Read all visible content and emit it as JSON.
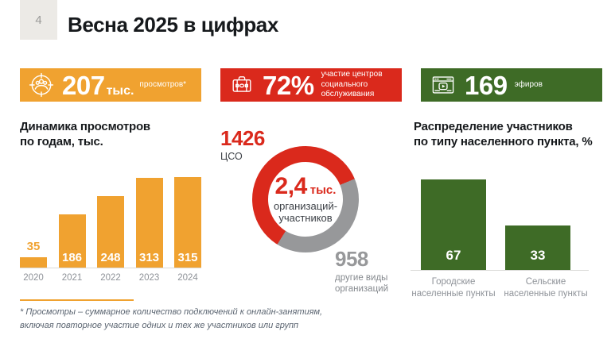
{
  "page": {
    "number": "4",
    "title": "Весна 2025 в цифрах"
  },
  "badges": [
    {
      "icon": "audience-target-icon",
      "value": "207",
      "unit": "тыс.",
      "label": "просмотров*",
      "color": "#F0A230"
    },
    {
      "icon": "briefcase-icon",
      "value": "72%",
      "unit": "",
      "label": "участие центров\nсоциального обслуживания",
      "color": "#DA291C"
    },
    {
      "icon": "video-broadcast-icon",
      "value": "169",
      "unit": "",
      "label": "эфиров",
      "color": "#3E6B26"
    }
  ],
  "chart_data": [
    {
      "type": "bar",
      "title": "Динамика просмотров\nпо годам, тыс.",
      "categories": [
        "2020",
        "2021",
        "2022",
        "2023",
        "2024"
      ],
      "values": [
        35,
        186,
        248,
        313,
        315
      ],
      "bar_color": "#F0A230",
      "ylim": [
        0,
        315
      ],
      "value_labels": "first value shown above bar in orange, others inside bars in white",
      "grid": false
    },
    {
      "type": "pie",
      "subtype": "donut",
      "title": "",
      "slices": [
        {
          "label": "ЦСО",
          "value": 1426,
          "color": "#DA291C"
        },
        {
          "label": "другие виды организаций",
          "value": 958,
          "color": "#97989A"
        }
      ],
      "center": {
        "value": "2,4",
        "unit": "тыс.",
        "label": "организаций-участников"
      },
      "legend_position": "callouts top-left and bottom-right"
    },
    {
      "type": "bar",
      "title": "Распределение участников\nпо типу населенного пункта, %",
      "categories": [
        "Городские населенные пункты",
        "Сельские населенные пункты"
      ],
      "values": [
        67,
        33
      ],
      "bar_color": "#3E6B26",
      "ylim": [
        0,
        67
      ],
      "value_labels": "inside bars in white",
      "grid": false
    }
  ],
  "footnote": {
    "text": "* Просмотры – суммарное количество подключений к онлайн-занятиям,\nвключая повторное участие одних и тех же участников или групп",
    "rule_color": "#F0A230"
  }
}
